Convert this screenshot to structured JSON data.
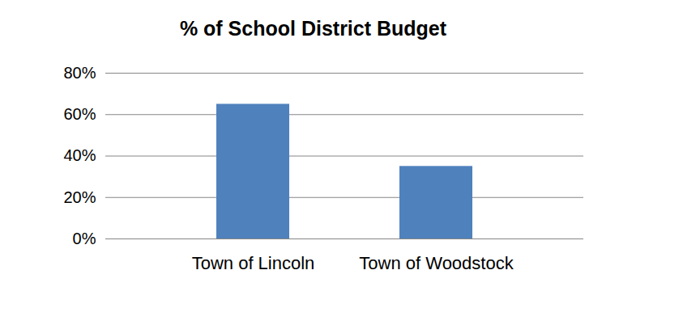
{
  "chart_data": {
    "type": "bar",
    "title": "% of School District Budget",
    "categories": [
      "Town of Lincoln",
      "Town of Woodstock"
    ],
    "values": [
      65,
      35
    ],
    "color": "#4f81bd",
    "ylim": [
      0,
      80
    ],
    "yticks": [
      {
        "value": 0,
        "label": "0%"
      },
      {
        "value": 20,
        "label": "20%"
      },
      {
        "value": 40,
        "label": "40%"
      },
      {
        "value": 60,
        "label": "60%"
      },
      {
        "value": 80,
        "label": "80%"
      }
    ],
    "grid": true
  }
}
